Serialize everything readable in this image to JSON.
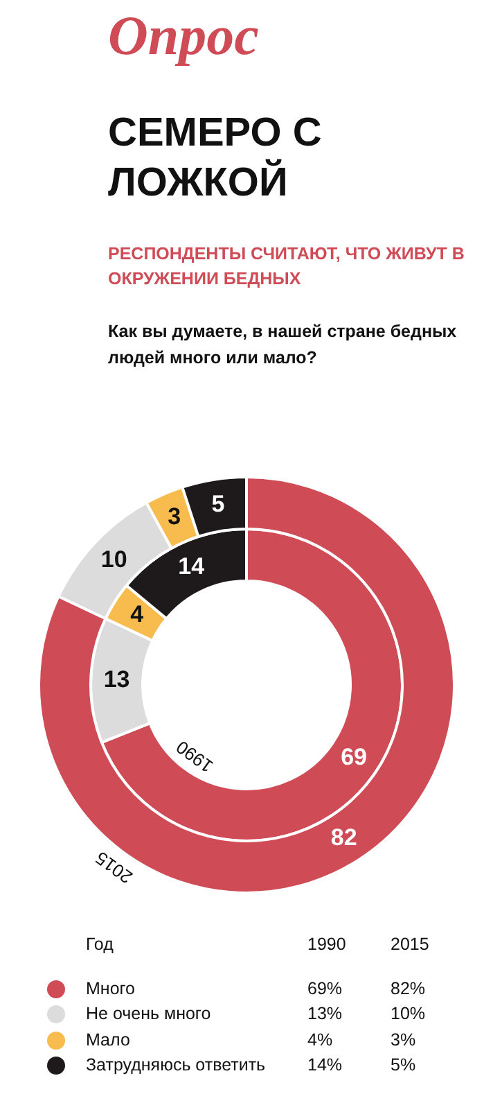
{
  "chart_data": [
    {
      "type": "donut",
      "title": "СЕМЕРО С ЛОЖКОЙ",
      "subtitle": "РЕСПОНДЕНТЫ СЧИТАЮТ, ЧТО ЖИВУТ В ОКРУЖЕНИИ БЕДНЫХ",
      "annotations": [
        "Опрос",
        "Как вы думаете, в нашей стране бедных людей много или мало?"
      ],
      "categories": [
        null,
        null,
        null,
        null
      ],
      "colors": [
        "#cf4b56",
        "#dcdcdc",
        "#f7bb4e",
        "#1e1a1b"
      ],
      "series": [
        {
          "name": "2015",
          "values": [
            82,
            10,
            3,
            5
          ]
        },
        {
          "name": "1990",
          "values": [
            69,
            13,
            4,
            14
          ]
        }
      ],
      "data_labels": true
    },
    {
      "type": "other",
      "legend_title": "Год",
      "categories": [
        "Много",
        "Не очень много",
        "Мало",
        "Затрудняюсь ответить"
      ],
      "colors": [
        "#cf4b56",
        "#dcdcdc",
        "#f7bb4e",
        "#1e1a1b"
      ],
      "series": [
        {
          "name": "1990",
          "values": [
            69,
            13,
            4,
            14
          ],
          "value_labels": [
            "69%",
            "13%",
            "4%",
            "14%"
          ]
        },
        {
          "name": "2015",
          "values": [
            82,
            10,
            3,
            5
          ],
          "value_labels": [
            "82%",
            "10%",
            "3%",
            "5%"
          ]
        }
      ]
    }
  ]
}
